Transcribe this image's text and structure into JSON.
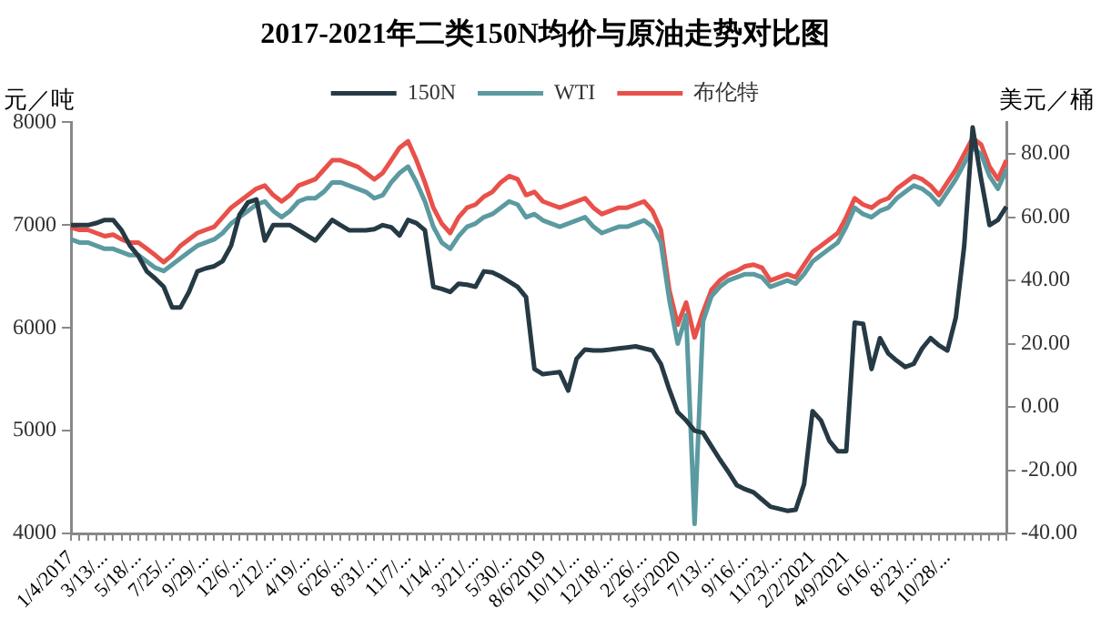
{
  "chart_data": {
    "type": "line",
    "title": "2017-2021年二类150N均价与原油走势对比图",
    "ylabel": "元／吨",
    "y2label": "美元／桶",
    "categories": [
      "1/4/2017",
      null,
      null,
      null,
      "3/13/...",
      null,
      null,
      null,
      "5/18/...",
      null,
      null,
      null,
      "7/25/...",
      null,
      null,
      null,
      "9/29/...",
      null,
      null,
      null,
      "12/6/...",
      null,
      null,
      null,
      "2/12/...",
      null,
      null,
      null,
      "4/19/...",
      null,
      null,
      null,
      "6/26/...",
      null,
      null,
      null,
      "8/31/...",
      null,
      null,
      null,
      "11/7/...",
      null,
      null,
      null,
      "1/14/...",
      null,
      null,
      null,
      "3/21/...",
      null,
      null,
      null,
      "5/30/...",
      null,
      null,
      null,
      "8/6/2019",
      null,
      null,
      null,
      "10/11/...",
      null,
      null,
      null,
      "12/18/...",
      null,
      null,
      null,
      "2/26/...",
      null,
      null,
      null,
      "5/5/2020",
      null,
      null,
      null,
      "7/13/...",
      null,
      null,
      null,
      "9/16/...",
      null,
      null,
      null,
      "11/23/...",
      null,
      null,
      null,
      "2/2/2021",
      null,
      null,
      null,
      "4/9/2021",
      null,
      null,
      null,
      "6/16/...",
      null,
      null,
      null,
      "8/23/...",
      null,
      null,
      null,
      "10/28/...",
      null,
      null,
      null,
      null,
      null,
      null,
      null
    ],
    "series": [
      {
        "name": "150N",
        "color": "#253a44",
        "values": [
          7000,
          7000,
          7000,
          7020,
          7050,
          7050,
          6950,
          6800,
          6700,
          6550,
          6480,
          6400,
          6200,
          6200,
          6350,
          6550,
          6580,
          6600,
          6650,
          6800,
          7100,
          7220,
          7250,
          6850,
          7000,
          7000,
          7000,
          6950,
          6900,
          6850,
          6950,
          7050,
          7000,
          6950,
          6950,
          6950,
          6960,
          7000,
          6980,
          6900,
          7050,
          7020,
          6950,
          6400,
          6380,
          6350,
          6430,
          6420,
          6400,
          6550,
          6540,
          6500,
          6450,
          6400,
          6300,
          5600,
          5550,
          5560,
          5570,
          5390,
          5700,
          5790,
          5780,
          5780,
          5790,
          5800,
          5810,
          5820,
          5800,
          5780,
          5650,
          5400,
          5180,
          5100,
          5000,
          4980,
          4850,
          4720,
          4600,
          4470,
          4430,
          4400,
          4330,
          4260,
          4240,
          4220,
          4230,
          4480,
          5190,
          5100,
          4900,
          4800,
          4800,
          6050,
          6040,
          5600,
          5900,
          5750,
          5680,
          5620,
          5650,
          5800,
          5900,
          5830,
          5780,
          6100,
          6800,
          7950,
          7450,
          7000,
          7050,
          7180
        ]
      },
      {
        "name": "WTI",
        "color": "#5b9aa0",
        "axis": "y2",
        "values": [
          53,
          52,
          52,
          51,
          50,
          50,
          49,
          48,
          48,
          46,
          44,
          43,
          45,
          47,
          49,
          51,
          52,
          53,
          55,
          58,
          60,
          62,
          64,
          65,
          62,
          60,
          62,
          65,
          66,
          66,
          68,
          71,
          71,
          70,
          69,
          68,
          66,
          67,
          71,
          74,
          76,
          71,
          65,
          57,
          52,
          50,
          54,
          57,
          58,
          60,
          61,
          63,
          65,
          64,
          60,
          61,
          59,
          58,
          57,
          58,
          59,
          60,
          57,
          55,
          56,
          57,
          57,
          58,
          59,
          57,
          52,
          34,
          20,
          29,
          -37,
          27,
          35,
          38,
          40,
          41,
          42,
          42,
          41,
          38,
          39,
          40,
          39,
          42,
          46,
          48,
          50,
          52,
          57,
          63,
          61,
          60,
          62,
          63,
          66,
          68,
          70,
          69,
          67,
          64,
          68,
          72,
          77,
          82,
          80,
          73,
          69,
          75
        ]
      },
      {
        "name": "布伦特",
        "color": "#e8514a",
        "axis": "y2",
        "values": [
          56.8,
          56,
          56,
          55,
          54,
          54.5,
          53,
          52,
          52,
          50,
          48,
          45.8,
          48,
          51,
          53,
          55,
          56,
          57,
          60,
          63,
          65,
          67,
          69,
          70,
          67,
          65,
          67,
          70,
          71,
          72,
          75,
          78,
          78,
          77,
          76,
          74,
          72,
          74,
          78,
          82,
          84,
          78,
          71,
          63,
          58,
          55,
          60,
          63,
          64,
          66.5,
          68,
          71,
          73,
          72,
          67,
          68,
          65,
          64,
          63,
          64,
          65,
          66,
          63,
          61,
          62,
          63,
          63,
          64,
          65,
          62,
          56,
          37,
          26,
          33,
          22,
          30,
          37,
          40,
          42,
          43,
          44.5,
          45,
          44,
          40,
          41,
          42,
          41,
          45,
          49,
          51,
          53,
          55,
          60,
          66,
          64,
          63,
          65,
          66,
          69,
          71,
          73,
          72,
          70,
          67,
          71,
          75,
          80,
          85,
          83,
          76,
          72,
          78
        ]
      }
    ],
    "ylim": [
      4000,
      8000
    ],
    "yticks": [
      4000,
      5000,
      6000,
      7000,
      8000
    ],
    "y2lim": [
      -40,
      90
    ],
    "y2ticks": [
      {
        "value": -40,
        "label": "-40.00"
      },
      {
        "value": -20,
        "label": "-20.00"
      },
      {
        "value": 0,
        "label": "0.00"
      },
      {
        "value": 20,
        "label": "20.00"
      },
      {
        "value": 40,
        "label": "40.00"
      },
      {
        "value": 60,
        "label": "60.00"
      },
      {
        "value": 80,
        "label": "80.00"
      }
    ],
    "grid": false,
    "legend": "top"
  }
}
